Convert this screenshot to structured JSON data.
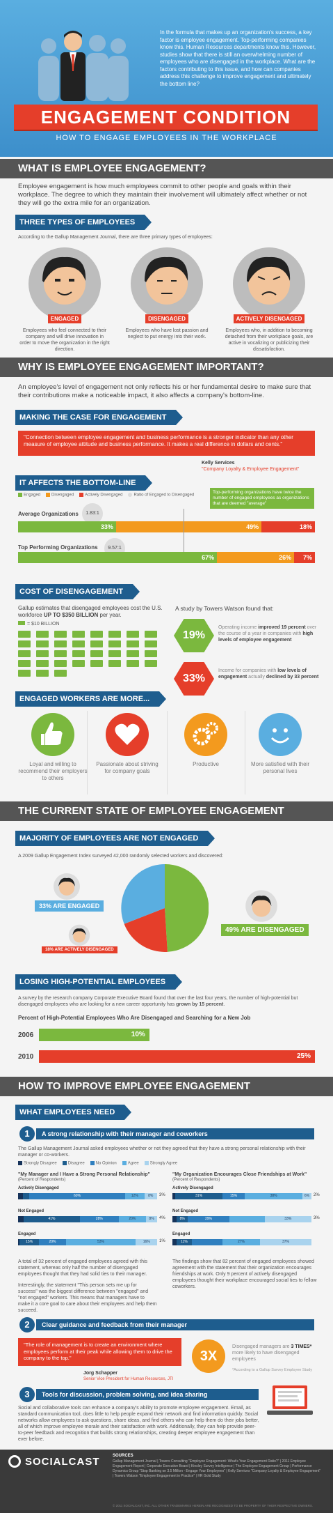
{
  "header": {
    "intro": "In the formula that makes up an organization's success, a key factor is employee engagement. Top-performing companies know this. Human Resources departments know this. However, studies show that there is still an overwhelming number of employees who are disengaged in the workplace. What are the factors contributing to this issue, and how can companies address this challenge to improve engagement and ultimately the bottom line?",
    "title": "ENGAGEMENT CONDITION",
    "subtitle": "HOW TO ENGAGE EMPLOYEES IN THE WORKPLACE"
  },
  "what": {
    "heading": "WHAT IS EMPLOYEE ENGAGEMENT?",
    "body": "Employee engagement is how much employees commit to other people and goals within their workplace. The degree to which they maintain their involvement will ultimately affect whether or not they will go the extra mile for an organization."
  },
  "types": {
    "heading": "THREE TYPES OF EMPLOYEES",
    "intro": "According to the Gallup Management Journal, there are three primary types of employees:",
    "items": [
      {
        "tag": "ENGAGED",
        "desc": "Employees who feel connected to their company and will drive innovation in order to move the organization in the right direction."
      },
      {
        "tag": "DISENGAGED",
        "desc": "Employees who have lost passion and neglect to put energy into their work."
      },
      {
        "tag": "ACTIVELY DISENGAGED",
        "desc": "Employees who, in addition to becoming detached from their workplace goals, are active in vocalizing or publicizing their dissatisfaction."
      }
    ]
  },
  "why": {
    "heading": "WHY IS EMPLOYEE ENGAGEMENT IMPORTANT?",
    "body": "An employee's level of engagement not only reflects his or her fundamental desire to make sure that their contributions make a noticeable impact, it also affects a company's bottom-line."
  },
  "case": {
    "heading": "MAKING THE CASE FOR ENGAGEMENT",
    "quote": "\"Connection between employee engagement and business performance is a stronger indicator than any other measure of employee attitude and business performance. It makes a real difference in dollars and cents.\"",
    "author": "Kelly Services",
    "source": "\"Company Loyalty & Employee Engagement\""
  },
  "bottom": {
    "heading": "IT AFFECTS THE BOTTOM-LINE",
    "legend": [
      "Engaged",
      "Disengaged",
      "Actively Disengaged",
      "Ratio of Engaged to Disengaged"
    ],
    "callout": "Top-performing organizations have twice the number of engaged employees as organizations that are deemed \"average\"",
    "rows": [
      {
        "label": "Average Organizations",
        "ratio": "1.83:1",
        "engaged": "33%",
        "disengaged": "49%",
        "active": "18%"
      },
      {
        "label": "Top Performing Organizations",
        "ratio": "9.57:1",
        "engaged": "67%",
        "disengaged": "26%",
        "active": "7%"
      }
    ]
  },
  "chart_data": {
    "type": "bar",
    "categories": [
      "Average Organizations",
      "Top Performing Organizations"
    ],
    "series": [
      {
        "name": "Engaged",
        "values": [
          33,
          67
        ]
      },
      {
        "name": "Disengaged",
        "values": [
          49,
          26
        ]
      },
      {
        "name": "Actively Disengaged",
        "values": [
          18,
          7
        ]
      }
    ],
    "ylim": [
      0,
      100
    ]
  },
  "cost": {
    "heading": "COST OF DISENGAGEMENT",
    "body_pre": "Gallup estimates that disengaged employees cost the U.S. workforce ",
    "body_strong": "UP TO $350 BILLION",
    "body_post": " per year.",
    "legend": "= $10 BILLION",
    "study": "A study by Towers Watson found that:",
    "stat1_value": "19%",
    "stat1_pre": "Operating income ",
    "stat1_strong": "improved 19 percent",
    "stat1_mid": " over the course of a year in companies with ",
    "stat1_strong2": "high levels of employee engagement",
    "stat2_value": "33%",
    "stat2_pre": "Income for companies with ",
    "stat2_strong": "low levels of engagement",
    "stat2_mid": " actually ",
    "stat2_strong2": "declined by 33 percent"
  },
  "more": {
    "heading": "ENGAGED WORKERS ARE MORE...",
    "items": [
      {
        "label": "Loyal and willing to recommend their employers to others"
      },
      {
        "label": "Passionate about striving for company goals"
      },
      {
        "label": "Productive"
      },
      {
        "label": "More satisfied with their personal lives"
      }
    ]
  },
  "state": {
    "heading": "THE CURRENT STATE OF EMPLOYEE ENGAGEMENT",
    "majority_heading": "MAJORITY OF EMPLOYEES ARE NOT ENGAGED",
    "survey": "A 2009 Gallup Engagement Index surveyed 42,000 randomly selected workers and discovered:",
    "engaged": "33% ARE ENGAGED",
    "active": "18% ARE ACTIVELY DISENGAGED",
    "disengaged": "49% ARE DISENGAGED"
  },
  "losing": {
    "heading": "LOSING HIGH-POTENTIAL EMPLOYEES",
    "body_pre": "A survey by the research company Corporate Executive Board found that over the last four years, the number of high-potential but disengaged employees who are looking for a new career opportunity has ",
    "body_strong": "grown by 15 percent",
    "body_post": ".",
    "chart_title": "Percent of High-Potential Employees Who Are Disengaged and Searching for a New Job",
    "rows": [
      {
        "year": "2006",
        "value": "10%",
        "pct": 10
      },
      {
        "year": "2010",
        "value": "25%",
        "pct": 25
      }
    ]
  },
  "improve": {
    "heading": "HOW TO IMPROVE EMPLOYEE ENGAGEMENT",
    "need_heading": "WHAT EMPLOYEES NEED",
    "item1_num": "1",
    "item1_title": "A strong relationship with their manager and coworkers",
    "item1_body": "The Gallup Management Journal asked employees whether or not they agreed that they have a strong personal relationship with their manager or co-workers.",
    "legend": [
      "Strongly Disagree",
      "Disagree",
      "No Opinion",
      "Agree",
      "Strongly Agree"
    ],
    "left_title": "\"My Manager and I Have a Strong Personal Relationship\"",
    "left_sub": "(Percent of Respondents)",
    "right_title": "\"My Organization Encourages Close Friendships at Work\"",
    "right_sub": "(Percent of Respondents)",
    "group_labels": [
      "Actively Disengaged",
      "Not Engaged",
      "Engaged"
    ],
    "left_rows": [
      [
        "",
        "",
        "60%",
        "12%",
        "8%"
      ],
      [
        "",
        "41%",
        "28%",
        "20%",
        "8%"
      ],
      [
        "",
        "15%",
        "20%",
        "53%",
        "16%"
      ]
    ],
    "left_side_labels": [
      "3%",
      "4%",
      "1%"
    ],
    "right_rows": [
      [
        "",
        "31%",
        "15%",
        "38%",
        "6%"
      ],
      [
        "",
        "8%",
        "29%",
        "",
        "33%"
      ],
      [
        "",
        "11%",
        "",
        "27%",
        "37%"
      ]
    ],
    "right_side_labels": [
      "2%",
      "3%"
    ],
    "left_text1": "A total of 32 percent of engaged employees agreed with this statement, whereas only half the number of disengaged employees thought that they had solid ties to their manager.",
    "left_text2": "Interestingly, the statement \"This person sets me up for success\" was the biggest difference between \"engaged\" and \"not engaged\" workers. This means that managers have to make it a core goal to care about their employees and help them succeed.",
    "right_text": "The findings show that 82 percent of engaged employees showed agreement with the statement that their organization encourages friendships at work. Only 9 percent of actively disengaged employees thought their workplace encouraged social ties to fellow coworkers.",
    "item2_num": "2",
    "item2_title": "Clear guidance and feedback from their manager",
    "item2_quote": "\"The role of management is to create an environment where employees perform at their peak while allowing them to drive the company to the top.\"",
    "item2_author": "Jorg Schapper",
    "item2_role": "Senior Vice President for Human Resources, JTI",
    "item2_stat": "3X",
    "item2_stat_text_pre": "Disengaged managers are ",
    "item2_stat_strong": "3 TIMES*",
    "item2_stat_text_post": " more likely to have disengaged employees",
    "item2_footnote": "*According to a Gallup Survey Employee Study",
    "item3_num": "3",
    "item3_title": "Tools for discussion, problem solving, and idea sharing",
    "item3_body": "Social and collaborative tools can enhance a company's ability to promote employee engagement. Email, as standard communication tool, does little to help people expand their network and find information quickly. Social networks allow employees to ask questions, share ideas, and find others who can help them do their jobs better, all of which improve employee morale and their satisfaction with work. Additionally, they can help provide peer-to-peer feedback and recognition that builds strong relationships, creating deeper employee engagement than ever before."
  },
  "footer": {
    "brand": "SOCIALCAST",
    "sources_title": "SOURCES",
    "sources": "Gallup Management Journal | Towers Consulting \"Employee Engagement: What's Your Engagement Ratio?\" | 2011 Employee Engagement Report | Corporate Executive Board | Kinsley Survey Intelligence | The Employee Engagement Group | Performance Dynamics Group \"Stop Banking on 3.5 Million - Engage Your Employees\" | Kelly Services \"Company Loyalty & Employee Engagement\" | Towers Watson \"Employee Engagement in Practice\" | HR Gold Study",
    "copyright": "© 2011 SOCIALCAST, INC. ALL OTHER TRADEMARKS HEREIN ARE RECOGNIZED TO BE PROPERTY OF THEIR RESPECTIVE OWNERS."
  },
  "colors": {
    "green": "#7bb83e",
    "orange": "#f39a1e",
    "red": "#e53e2a",
    "blue": "#1e5d8e",
    "light_blue": "#5aaee0",
    "dark": "#555555"
  }
}
